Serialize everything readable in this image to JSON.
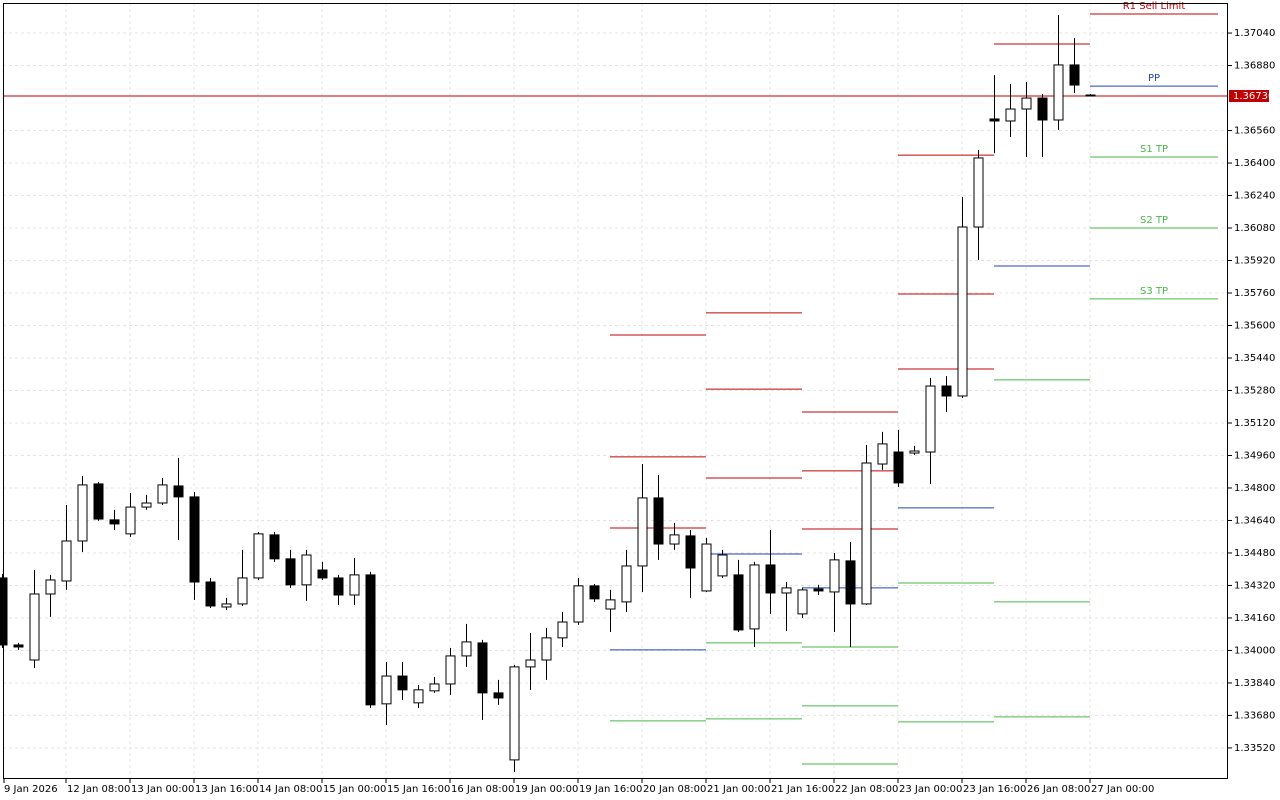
{
  "chart_data": {
    "type": "candlestick",
    "categories": [
      "9 Jan 2026",
      null,
      null,
      null,
      "12 Jan 08:00",
      null,
      null,
      null,
      "13 Jan 00:00",
      null,
      null,
      null,
      "13 Jan 16:00",
      null,
      null,
      null,
      "14 Jan 08:00",
      null,
      null,
      null,
      "15 Jan 00:00",
      null,
      null,
      null,
      "15 Jan 16:00",
      null,
      null,
      null,
      "16 Jan 08:00",
      null,
      null,
      null,
      "19 Jan 00:00",
      null,
      null,
      null,
      "19 Jan 16:00",
      null,
      null,
      null,
      "20 Jan 08:00",
      null,
      null,
      null,
      "21 Jan 00:00",
      null,
      null,
      null,
      "21 Jan 16:00",
      null,
      null,
      null,
      "22 Jan 08:00",
      null,
      null,
      null,
      "23 Jan 00:00",
      null,
      null,
      null,
      "23 Jan 16:00",
      null,
      null,
      null,
      "26 Jan 08:00",
      null,
      null,
      null,
      "27 Jan 00:00"
    ],
    "open": [
      1.34357,
      1.34027,
      1.33953,
      1.34278,
      1.34342,
      1.34539,
      1.3482,
      1.34643,
      1.34574,
      1.34706,
      1.34726,
      1.3481,
      1.34756,
      1.34337,
      1.34214,
      1.34229,
      1.34357,
      1.34569,
      1.34451,
      1.34323,
      1.34396,
      1.34357,
      1.34273,
      1.34372,
      1.33737,
      1.33874,
      1.33742,
      1.33801,
      1.33835,
      1.33973,
      1.34037,
      1.33791,
      1.33461,
      1.33919,
      1.33953,
      1.34062,
      1.3414,
      1.34318,
      1.34204,
      1.34239,
      1.34416,
      1.34751,
      1.34524,
      1.34564,
      1.34293,
      1.34367,
      1.34372,
      1.34106,
      1.34421,
      1.34283,
      1.3418,
      1.34303,
      1.34288,
      1.34441,
      1.34229,
      1.34918,
      1.34977,
      1.34972,
      1.34977,
      1.35302,
      1.35253,
      1.36085,
      1.36617,
      1.36607,
      1.36666,
      1.3672,
      1.36612,
      1.36883,
      1.36735
    ],
    "high": [
      1.34377,
      1.34037,
      1.34396,
      1.34372,
      1.34716,
      1.34859,
      1.3483,
      1.34692,
      1.34775,
      1.34766,
      1.34849,
      1.34948,
      1.3478,
      1.34357,
      1.34259,
      1.34495,
      1.34583,
      1.34583,
      1.34495,
      1.34495,
      1.34436,
      1.34372,
      1.34455,
      1.34387,
      1.33943,
      1.33943,
      1.3383,
      1.3387,
      1.34012,
      1.34131,
      1.34052,
      1.33855,
      1.33929,
      1.34086,
      1.34111,
      1.3419,
      1.34357,
      1.34327,
      1.34298,
      1.34495,
      1.34918,
      1.34864,
      1.34628,
      1.34593,
      1.34554,
      1.34495,
      1.34446,
      1.34436,
      1.34593,
      1.34337,
      1.34308,
      1.34323,
      1.3448,
      1.34534,
      1.35012,
      1.35076,
      1.35086,
      1.35007,
      1.35342,
      1.35351,
      1.36233,
      1.36464,
      1.36833,
      1.36789,
      1.36799,
      1.3674,
      1.37129,
      1.37015,
      1.3674
    ],
    "low": [
      1.34012,
      1.34003,
      1.33914,
      1.34165,
      1.34298,
      1.34485,
      1.34638,
      1.34593,
      1.34559,
      1.34692,
      1.34716,
      1.34544,
      1.34249,
      1.34209,
      1.34199,
      1.34219,
      1.34347,
      1.34436,
      1.34308,
      1.34244,
      1.34347,
      1.34224,
      1.34224,
      1.33717,
      1.33633,
      1.33756,
      1.33717,
      1.33791,
      1.33781,
      1.33919,
      1.33658,
      1.33732,
      1.33402,
      1.33806,
      1.33855,
      1.34017,
      1.34126,
      1.34239,
      1.34091,
      1.3419,
      1.34288,
      1.34446,
      1.34495,
      1.34259,
      1.34288,
      1.34357,
      1.34091,
      1.34017,
      1.3418,
      1.34096,
      1.3416,
      1.34273,
      1.34091,
      1.34017,
      1.34224,
      1.34889,
      1.34805,
      1.34963,
      1.3482,
      1.35174,
      1.35243,
      1.35923,
      1.36449,
      1.36528,
      1.3643,
      1.3643,
      1.36563,
      1.36745,
      1.3673
    ],
    "close": [
      1.34027,
      1.34017,
      1.34278,
      1.34347,
      1.34539,
      1.34815,
      1.34647,
      1.34623,
      1.34706,
      1.34726,
      1.34815,
      1.34756,
      1.34337,
      1.34219,
      1.34229,
      1.34357,
      1.34574,
      1.34451,
      1.34323,
      1.3447,
      1.34357,
      1.34273,
      1.34372,
      1.33732,
      1.33874,
      1.33806,
      1.33806,
      1.33835,
      1.33973,
      1.34042,
      1.33791,
      1.33766,
      1.33919,
      1.33953,
      1.34062,
      1.3414,
      1.34318,
      1.34254,
      1.34249,
      1.34416,
      1.34751,
      1.34524,
      1.34569,
      1.34406,
      1.34524,
      1.3447,
      1.34101,
      1.34421,
      1.34283,
      1.34308,
      1.34298,
      1.34293,
      1.34446,
      1.34229,
      1.34923,
      1.35017,
      1.34825,
      1.34982,
      1.35302,
      1.35253,
      1.36085,
      1.36425,
      1.36607,
      1.36666,
      1.3672,
      1.36612,
      1.36883,
      1.36784,
      1.3673
    ],
    "up_color": "#ffffff",
    "down_color": "#000000",
    "ylim": [
      1.33367,
      1.37188
    ],
    "yticks": [
      {
        "value": 1.3704,
        "label": "1.37040"
      },
      {
        "value": 1.3688,
        "label": "1.36880"
      },
      {
        "value": 1.3656,
        "label": "1.36560"
      },
      {
        "value": 1.364,
        "label": "1.36400"
      },
      {
        "value": 1.3624,
        "label": "1.36240"
      },
      {
        "value": 1.3608,
        "label": "1.36080"
      },
      {
        "value": 1.3592,
        "label": "1.35920"
      },
      {
        "value": 1.3576,
        "label": "1.35760"
      },
      {
        "value": 1.356,
        "label": "1.35600"
      },
      {
        "value": 1.3544,
        "label": "1.35440"
      },
      {
        "value": 1.3528,
        "label": "1.35280"
      },
      {
        "value": 1.3512,
        "label": "1.35120"
      },
      {
        "value": 1.3496,
        "label": "1.34960"
      },
      {
        "value": 1.348,
        "label": "1.34800"
      },
      {
        "value": 1.3464,
        "label": "1.34640"
      },
      {
        "value": 1.3448,
        "label": "1.34480"
      },
      {
        "value": 1.3432,
        "label": "1.34320"
      },
      {
        "value": 1.3416,
        "label": "1.34160"
      },
      {
        "value": 1.34,
        "label": "1.34000"
      },
      {
        "value": 1.3384,
        "label": "1.33840"
      },
      {
        "value": 1.3368,
        "label": "1.33680"
      },
      {
        "value": 1.3352,
        "label": "1.33520"
      }
    ],
    "grid": true,
    "current_price": {
      "value": 1.3673,
      "label": "1.36730",
      "color": "#c00000"
    },
    "pivot_days": [
      {
        "lines": [
          {
            "value": 1.35553,
            "color": "#c00000"
          },
          {
            "value": 1.34953,
            "color": "#c00000"
          },
          {
            "value": 1.34603,
            "color": "#c00000"
          },
          {
            "value": 1.34003,
            "color": "#1f47b0"
          },
          {
            "value": 1.33653,
            "color": "#4cb648"
          }
        ]
      },
      {
        "lines": [
          {
            "value": 1.35662,
            "color": "#c00000"
          },
          {
            "value": 1.35287,
            "color": "#c00000"
          },
          {
            "value": 1.34849,
            "color": "#c00000"
          },
          {
            "value": 1.34475,
            "color": "#1f47b0"
          },
          {
            "value": 1.34037,
            "color": "#4cb648"
          },
          {
            "value": 1.33663,
            "color": "#4cb648"
          }
        ]
      },
      {
        "lines": [
          {
            "value": 1.35174,
            "color": "#c00000"
          },
          {
            "value": 1.34884,
            "color": "#c00000"
          },
          {
            "value": 1.34598,
            "color": "#c00000"
          },
          {
            "value": 1.34308,
            "color": "#1f47b0"
          },
          {
            "value": 1.34017,
            "color": "#4cb648"
          },
          {
            "value": 1.33727,
            "color": "#4cb648"
          },
          {
            "value": 1.33441,
            "color": "#4cb648"
          }
        ]
      },
      {
        "lines": [
          {
            "value": 1.36439,
            "color": "#c00000"
          },
          {
            "value": 1.35755,
            "color": "#c00000"
          },
          {
            "value": 1.35386,
            "color": "#c00000"
          },
          {
            "value": 1.34702,
            "color": "#1f47b0"
          },
          {
            "value": 1.34332,
            "color": "#4cb648"
          },
          {
            "value": 1.33648,
            "color": "#4cb648"
          }
        ]
      },
      {
        "lines": [
          {
            "value": 1.36986,
            "color": "#c00000"
          },
          {
            "value": 1.35893,
            "color": "#1f47b0"
          },
          {
            "value": 1.35332,
            "color": "#4cb648"
          },
          {
            "value": 1.34239,
            "color": "#4cb648"
          },
          {
            "value": 1.33673,
            "color": "#4cb648"
          }
        ]
      },
      {
        "lines": [
          {
            "value": 1.37134,
            "color": "#c00000",
            "label": "R1 Sell Limit"
          },
          {
            "value": 1.36779,
            "color": "#1f47b0",
            "label": "PP"
          },
          {
            "value": 1.3643,
            "color": "#4cb648",
            "label": "S1 TP"
          },
          {
            "value": 1.3608,
            "color": "#4cb648",
            "label": "S2 TP"
          },
          {
            "value": 1.35731,
            "color": "#4cb648",
            "label": "S3 TP"
          }
        ]
      }
    ]
  }
}
